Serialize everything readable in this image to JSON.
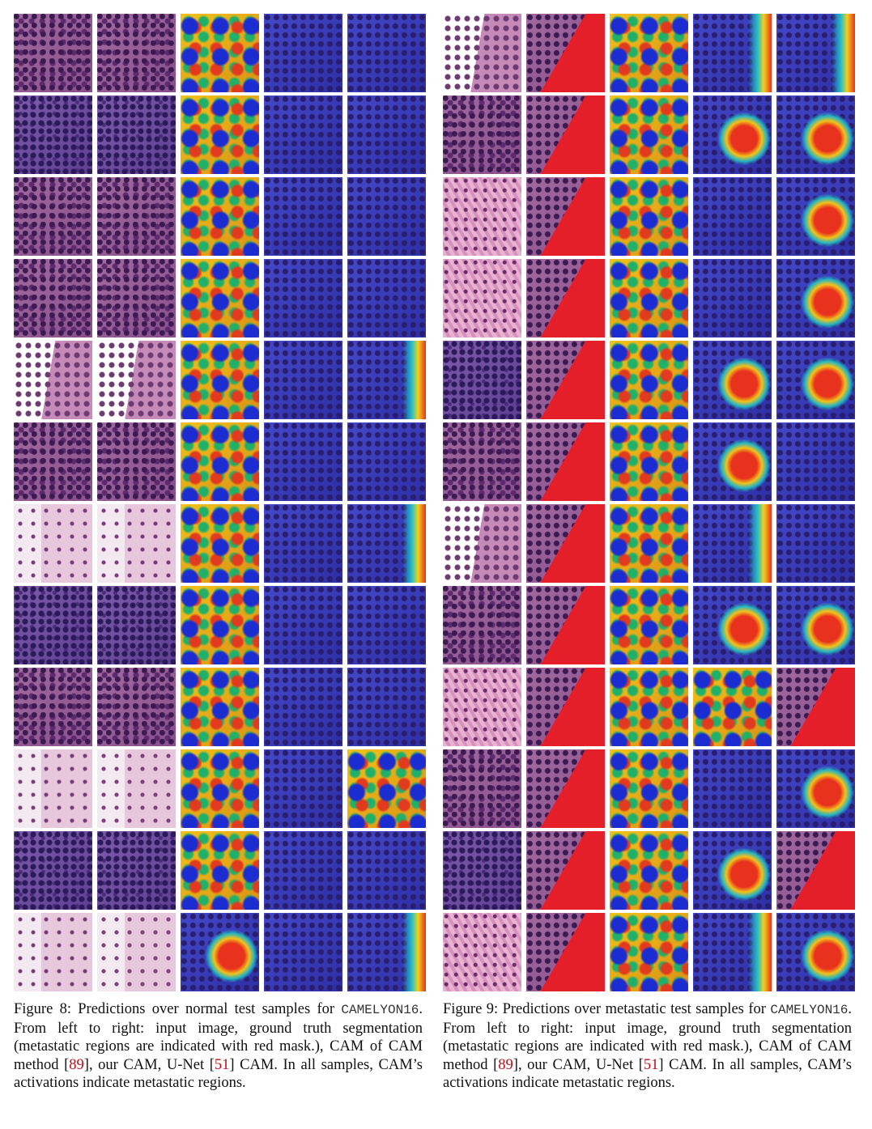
{
  "left_figure": {
    "rows": [
      [
        "t-dense",
        "t-dense",
        "t-heat",
        "t-blue",
        "t-blue"
      ],
      [
        "t-purple",
        "t-purple",
        "t-heat",
        "t-blue",
        "t-blue"
      ],
      [
        "t-dense",
        "t-dense",
        "t-heat",
        "t-blue",
        "t-blue"
      ],
      [
        "t-dense",
        "t-dense",
        "t-heat",
        "t-blue",
        "t-blue"
      ],
      [
        "t-white",
        "t-white",
        "t-heat",
        "t-blue",
        "t-blue-edge"
      ],
      [
        "t-dense",
        "t-dense",
        "t-heat",
        "t-blue",
        "t-blue"
      ],
      [
        "t-light",
        "t-light",
        "t-heat",
        "t-blue",
        "t-blue-edge"
      ],
      [
        "t-purple",
        "t-purple",
        "t-heat",
        "t-blue",
        "t-blue"
      ],
      [
        "t-dense",
        "t-dense",
        "t-heat",
        "t-blue",
        "t-blue"
      ],
      [
        "t-light",
        "t-light",
        "t-heat",
        "t-blue",
        "t-heat"
      ],
      [
        "t-purple",
        "t-purple",
        "t-heat",
        "t-blue",
        "t-blue"
      ],
      [
        "t-light",
        "t-light",
        "t-blue-red",
        "t-blue",
        "t-blue-edge"
      ]
    ]
  },
  "right_figure": {
    "rows": [
      [
        "t-white",
        "t-mask",
        "t-heat",
        "t-blue-edge",
        "t-blue-edge"
      ],
      [
        "t-dense",
        "t-mask",
        "t-heat",
        "t-blue-red",
        "t-blue-red"
      ],
      [
        "t-pink",
        "t-mask",
        "t-heat",
        "t-blue",
        "t-blue-red"
      ],
      [
        "t-pink",
        "t-mask",
        "t-heat",
        "t-blue",
        "t-blue-red"
      ],
      [
        "t-purple",
        "t-mask",
        "t-heat",
        "t-blue-red",
        "t-blue-red"
      ],
      [
        "t-dense",
        "t-mask",
        "t-heat",
        "t-blue-red",
        "t-blue"
      ],
      [
        "t-white",
        "t-mask",
        "t-heat",
        "t-blue-edge",
        "t-blue"
      ],
      [
        "t-dense",
        "t-mask",
        "t-heat",
        "t-blue-red",
        "t-blue-red"
      ],
      [
        "t-pink",
        "t-mask",
        "t-heat",
        "t-heat",
        "t-mask"
      ],
      [
        "t-dense",
        "t-mask",
        "t-heat",
        "t-blue",
        "t-blue-red"
      ],
      [
        "t-purple",
        "t-mask",
        "t-heat",
        "t-blue-red",
        "t-mask"
      ],
      [
        "t-pink",
        "t-mask",
        "t-heat",
        "t-blue-edge",
        "t-blue-red"
      ]
    ]
  },
  "caption_left": {
    "prefix": "Figure 8:  Predictions over normal test samples for ",
    "dataset": "CAMELYON16",
    "mid1": ".  From left to right:  input image, ground truth segmentation (metastatic regions are indicated with red mask.), CAM of CAM method [",
    "cite1": "89",
    "mid2": "], our CAM, U-Net [",
    "cite2": "51",
    "end": "] CAM. In all samples, CAM’s activations indicate metastatic regions."
  },
  "caption_right": {
    "prefix": "Figure 9:  Predictions over metastatic test samples for ",
    "dataset": "CAMELYON16",
    "mid1": ".  From left to right:  input image, ground truth segmentation (metastatic regions are indicated with red mask.), CAM of CAM method [",
    "cite1": "89",
    "mid2": "], our CAM, U-Net [",
    "cite2": "51",
    "end": "] CAM. In all samples, CAM’s activations indicate metastatic regions."
  }
}
